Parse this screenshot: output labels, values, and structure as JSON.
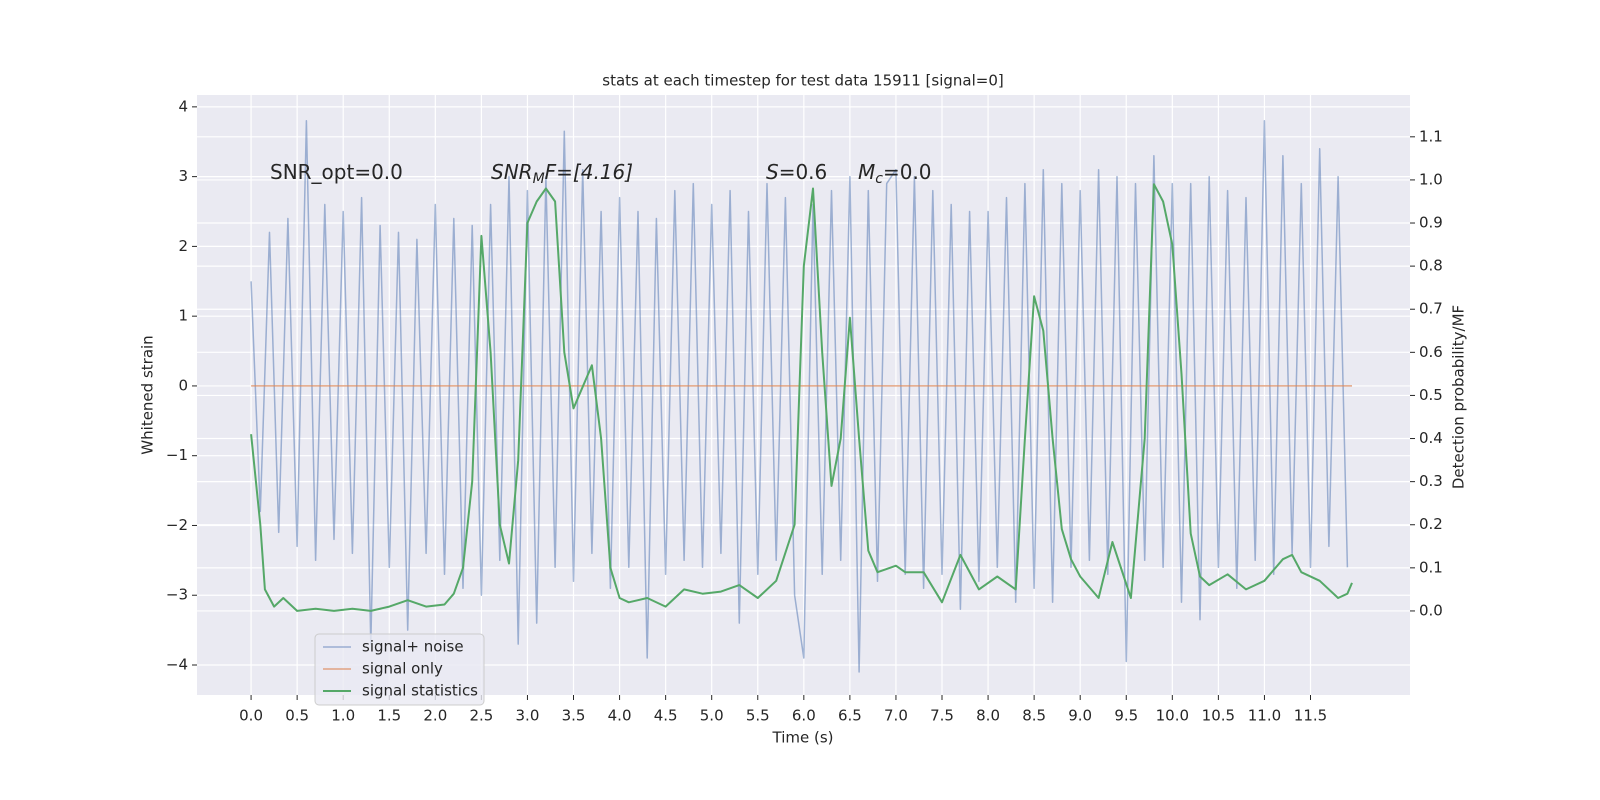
{
  "chart_data": {
    "type": "line",
    "title": "stats at each timestep for test data 15911 [signal=0]",
    "xlabel": "Time (s)",
    "ylabel": "Whitened strain",
    "y2label": "Detection probability/MF",
    "annotations": [
      {
        "parts": [
          "SNR_opt=0.0"
        ]
      },
      {
        "parts": [
          "SNR",
          "M",
          "F=[4.16]"
        ]
      },
      {
        "parts": [
          "S",
          "=0.6"
        ]
      },
      {
        "parts": [
          "M",
          "c",
          "=0.0"
        ]
      }
    ],
    "xlim": [
      -0.587,
      12.58
    ],
    "ylim": [
      -4.43,
      4.17
    ],
    "y2lim": [
      -0.195,
      1.197
    ],
    "xticks": [
      {
        "value": 0,
        "label": "0.0"
      },
      {
        "value": 0.5,
        "label": "0.5"
      },
      {
        "value": 1,
        "label": "1.0"
      },
      {
        "value": 1.5,
        "label": "1.5"
      },
      {
        "value": 2,
        "label": "2.0"
      },
      {
        "value": 2.5,
        "label": "2.5"
      },
      {
        "value": 3,
        "label": "3.0"
      },
      {
        "value": 3.5,
        "label": "3.5"
      },
      {
        "value": 4,
        "label": "4.0"
      },
      {
        "value": 4.5,
        "label": "4.5"
      },
      {
        "value": 5,
        "label": "5.0"
      },
      {
        "value": 5.5,
        "label": "5.5"
      },
      {
        "value": 6,
        "label": "6.0"
      },
      {
        "value": 6.5,
        "label": "6.5"
      },
      {
        "value": 7,
        "label": "7.0"
      },
      {
        "value": 7.5,
        "label": "7.5"
      },
      {
        "value": 8,
        "label": "8.0"
      },
      {
        "value": 8.5,
        "label": "8.5"
      },
      {
        "value": 9,
        "label": "9.0"
      },
      {
        "value": 9.5,
        "label": "9.5"
      },
      {
        "value": 10,
        "label": "10.0"
      },
      {
        "value": 10.5,
        "label": "10.5"
      },
      {
        "value": 11,
        "label": "11.0"
      },
      {
        "value": 11.5,
        "label": "11.5"
      }
    ],
    "yticks": [
      {
        "value": -4,
        "label": "−4"
      },
      {
        "value": -3,
        "label": "−3"
      },
      {
        "value": -2,
        "label": "−2"
      },
      {
        "value": -1,
        "label": "−1"
      },
      0,
      1,
      2,
      3,
      4
    ],
    "y2ticks": [
      {
        "value": 0,
        "label": "0.0"
      },
      {
        "value": 0.1,
        "label": "0.1"
      },
      {
        "value": 0.2,
        "label": "0.2"
      },
      {
        "value": 0.3,
        "label": "0.3"
      },
      {
        "value": 0.4,
        "label": "0.4"
      },
      {
        "value": 0.5,
        "label": "0.5"
      },
      {
        "value": 0.6,
        "label": "0.6"
      },
      {
        "value": 0.7,
        "label": "0.7"
      },
      {
        "value": 0.8,
        "label": "0.8"
      },
      {
        "value": 0.9,
        "label": "0.9"
      },
      {
        "value": 1,
        "label": "1.0"
      },
      {
        "value": 1.1,
        "label": "1.1"
      }
    ],
    "grid": true,
    "legend": "lower left",
    "series": [
      {
        "name": "signal+ noise",
        "color": "#4c72b0",
        "x": [
          0.0,
          0.1,
          0.2,
          0.3,
          0.4,
          0.5,
          0.6,
          0.7,
          0.8,
          0.9,
          1.0,
          1.1,
          1.2,
          1.3,
          1.4,
          1.5,
          1.6,
          1.7,
          1.8,
          1.9,
          2.0,
          2.1,
          2.2,
          2.3,
          2.4,
          2.5,
          2.6,
          2.7,
          2.8,
          2.9,
          3.0,
          3.1,
          3.2,
          3.3,
          3.4,
          3.5,
          3.6,
          3.7,
          3.8,
          3.9,
          4.0,
          4.1,
          4.2,
          4.3,
          4.4,
          4.5,
          4.6,
          4.7,
          4.8,
          4.9,
          5.0,
          5.1,
          5.2,
          5.3,
          5.4,
          5.5,
          5.6,
          5.7,
          5.8,
          5.9,
          6.0,
          6.1,
          6.2,
          6.3,
          6.4,
          6.5,
          6.6,
          6.7,
          6.8,
          6.9,
          7.0,
          7.1,
          7.2,
          7.3,
          7.4,
          7.5,
          7.6,
          7.7,
          7.8,
          7.9,
          8.0,
          8.1,
          8.2,
          8.3,
          8.4,
          8.5,
          8.6,
          8.7,
          8.8,
          8.9,
          9.0,
          9.1,
          9.2,
          9.3,
          9.4,
          9.5,
          9.6,
          9.7,
          9.8,
          9.9,
          10.0,
          10.1,
          10.2,
          10.3,
          10.4,
          10.5,
          10.6,
          10.7,
          10.8,
          10.9,
          11.0,
          11.1,
          11.2,
          11.3,
          11.4,
          11.5,
          11.6,
          11.7,
          11.8,
          11.9
        ],
        "values": [
          1.5,
          -1.8,
          2.2,
          -2.1,
          2.4,
          -2.3,
          3.8,
          -2.5,
          2.6,
          -2.2,
          2.5,
          -2.4,
          2.7,
          -3.7,
          2.3,
          -2.6,
          2.2,
          -3.5,
          2.1,
          -2.4,
          2.6,
          -2.7,
          2.4,
          -2.9,
          2.3,
          -3.0,
          2.6,
          -2.5,
          3.0,
          -3.7,
          2.8,
          -3.4,
          3.0,
          -2.6,
          3.65,
          -2.8,
          3.1,
          -2.4,
          2.5,
          -2.9,
          2.7,
          -2.6,
          2.5,
          -3.9,
          2.4,
          -2.7,
          2.8,
          -2.5,
          2.9,
          -2.6,
          2.6,
          -2.4,
          2.8,
          -3.4,
          2.5,
          -2.7,
          2.9,
          -2.5,
          2.7,
          -3.0,
          -3.9,
          2.6,
          -2.7,
          2.8,
          -2.5,
          3.0,
          -4.1,
          2.8,
          -2.8,
          2.9,
          3.1,
          -2.7,
          3.0,
          -2.9,
          2.8,
          -2.7,
          2.6,
          -3.2,
          2.5,
          -2.8,
          2.5,
          -2.6,
          2.7,
          -3.1,
          2.9,
          -2.9,
          3.1,
          -3.1,
          2.9,
          -2.6,
          2.8,
          -2.5,
          3.1,
          -2.7,
          3.0,
          -3.95,
          2.9,
          -2.5,
          3.3,
          -2.6,
          2.9,
          -3.1,
          2.9,
          -3.35,
          3.0,
          -2.6,
          2.8,
          -2.9,
          2.7,
          -2.5,
          3.8,
          -2.7,
          3.3,
          -2.4,
          2.9,
          -2.6,
          3.4,
          -2.3,
          3.0,
          -2.6
        ]
      },
      {
        "name": "signal only",
        "color": "#dd8452",
        "x": [
          0.0,
          11.95
        ],
        "values": [
          0,
          0
        ]
      },
      {
        "name": "signal statistics",
        "color": "#55a868",
        "axis": "y2",
        "x": [
          0.0,
          0.1,
          0.15,
          0.25,
          0.35,
          0.5,
          0.7,
          0.9,
          1.1,
          1.3,
          1.5,
          1.7,
          1.9,
          2.1,
          2.2,
          2.3,
          2.4,
          2.5,
          2.6,
          2.7,
          2.8,
          2.9,
          3.0,
          3.1,
          3.2,
          3.3,
          3.4,
          3.5,
          3.6,
          3.7,
          3.8,
          3.9,
          4.0,
          4.1,
          4.3,
          4.5,
          4.7,
          4.9,
          5.1,
          5.3,
          5.5,
          5.7,
          5.9,
          6.0,
          6.1,
          6.2,
          6.3,
          6.4,
          6.5,
          6.6,
          6.7,
          6.8,
          7.0,
          7.1,
          7.3,
          7.5,
          7.7,
          7.9,
          8.1,
          8.3,
          8.4,
          8.5,
          8.6,
          8.7,
          8.8,
          8.9,
          9.0,
          9.2,
          9.35,
          9.55,
          9.7,
          9.8,
          9.9,
          10.0,
          10.1,
          10.2,
          10.3,
          10.4,
          10.6,
          10.8,
          11.0,
          11.2,
          11.3,
          11.4,
          11.6,
          11.8,
          11.9,
          11.95
        ],
        "values": [
          0.41,
          0.2,
          0.05,
          0.01,
          0.03,
          0.0,
          0.005,
          0.0,
          0.005,
          0.0,
          0.01,
          0.025,
          0.01,
          0.015,
          0.04,
          0.1,
          0.3,
          0.87,
          0.6,
          0.2,
          0.11,
          0.35,
          0.9,
          0.95,
          0.98,
          0.95,
          0.6,
          0.47,
          0.52,
          0.57,
          0.4,
          0.1,
          0.03,
          0.02,
          0.03,
          0.01,
          0.05,
          0.04,
          0.045,
          0.06,
          0.03,
          0.07,
          0.2,
          0.8,
          0.98,
          0.6,
          0.29,
          0.4,
          0.68,
          0.4,
          0.14,
          0.09,
          0.105,
          0.09,
          0.09,
          0.02,
          0.13,
          0.05,
          0.08,
          0.05,
          0.4,
          0.73,
          0.65,
          0.4,
          0.19,
          0.12,
          0.08,
          0.03,
          0.16,
          0.03,
          0.4,
          0.99,
          0.95,
          0.85,
          0.55,
          0.18,
          0.08,
          0.06,
          0.085,
          0.05,
          0.07,
          0.12,
          0.13,
          0.09,
          0.07,
          0.03,
          0.04,
          0.065
        ]
      }
    ]
  }
}
